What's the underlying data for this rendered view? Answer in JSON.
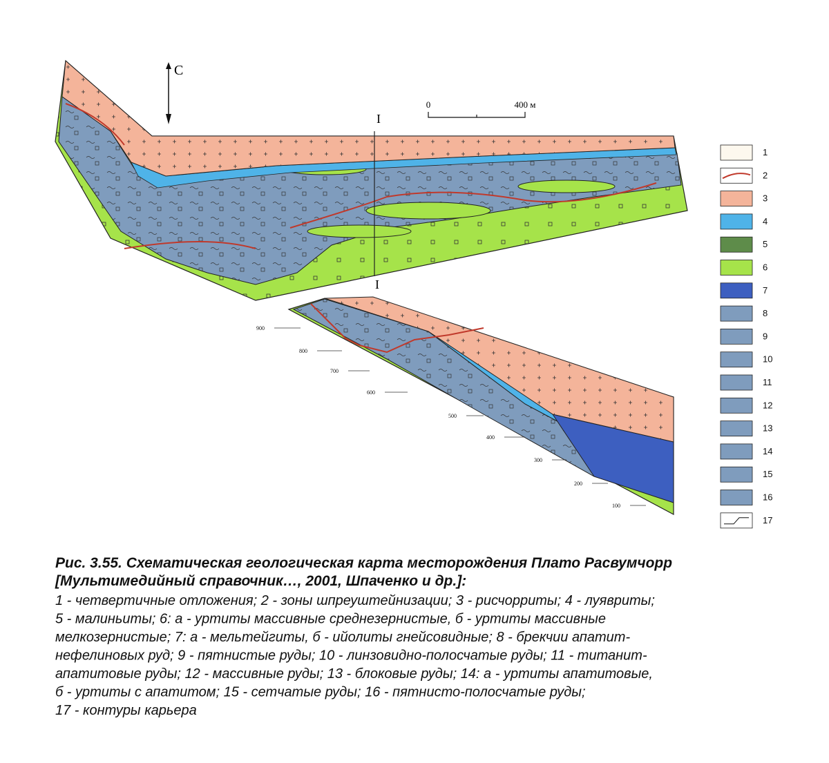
{
  "north_arrow": "С",
  "scale": {
    "start": "0",
    "end": "400 м"
  },
  "section_marks": [
    "I",
    "I"
  ],
  "section_elevations": [
    900,
    800,
    700,
    600,
    500,
    400,
    300,
    200,
    100
  ],
  "legend": [
    {
      "label": "1",
      "color": "#fdf8ee"
    },
    {
      "label": "2",
      "color": "#ffffff"
    },
    {
      "label": "3",
      "color": "#f4b49a"
    },
    {
      "label": "4",
      "color": "#4fb3e8"
    },
    {
      "label": "5",
      "color": "#5e8c4a"
    },
    {
      "label": "6",
      "color": "#a6e34a"
    },
    {
      "label": "7",
      "color": "#3d5fc0"
    },
    {
      "label": "8",
      "color": "#7f9cbd"
    },
    {
      "label": "9",
      "color": "#7f9cbd"
    },
    {
      "label": "10",
      "color": "#7f9cbd"
    },
    {
      "label": "11",
      "color": "#7f9cbd"
    },
    {
      "label": "12",
      "color": "#7f9cbd"
    },
    {
      "label": "13",
      "color": "#7f9cbd"
    },
    {
      "label": "14",
      "color": "#7f9cbd"
    },
    {
      "label": "15",
      "color": "#7f9cbd"
    },
    {
      "label": "16",
      "color": "#7f9cbd"
    },
    {
      "label": "17",
      "color": "#ffffff"
    }
  ],
  "caption": {
    "title_lines": [
      "Рис. 3.55. Схематическая геологическая карта месторождения Плато Расвумчорр",
      "[Мультимедийный справочник…, 2001, Шпаченко и др.]:"
    ],
    "body_lines": [
      "1 - четвертичные отложения; 2 - зоны шпреуштейнизации; 3 - рисчорриты; 4 - луявриты;",
      "5 - малиньиты; 6: а - уртиты массивные среднезернистые, б - уртиты массивные",
      "мелкозернистые; 7: а - мельтейгиты, б - ийолиты гнейсовидные; 8 - брекчии апатит-",
      "нефелиновых руд; 9 - пятнистые руды; 10 - линзовидно-полосчатые руды; 11 - титанит-",
      "апатитовые руды; 12 - массивные руды; 13 - блоковые руды; 14: а - уртиты апатитовые,",
      "б - уртиты с апатитом; 15 - сетчатые руды; 16 - пятнисто-полосчатые руды;",
      "17 - контуры карьера"
    ]
  }
}
